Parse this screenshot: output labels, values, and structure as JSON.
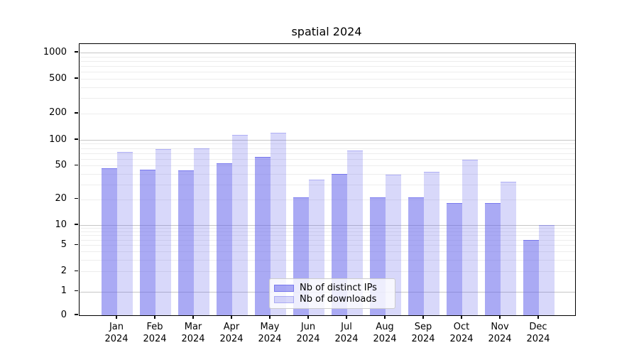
{
  "chart_data": {
    "type": "bar",
    "title": "spatial 2024",
    "categories": [
      "Jan",
      "Feb",
      "Mar",
      "Apr",
      "May",
      "Jun",
      "Jul",
      "Aug",
      "Sep",
      "Oct",
      "Nov",
      "Dec"
    ],
    "x_year_label": "2024",
    "series": [
      {
        "name": "Nb of distinct IPs",
        "values": [
          46,
          45,
          44,
          53,
          63,
          21,
          40,
          21,
          21,
          18,
          18,
          6
        ],
        "fill": "rgba(100,100,235,0.55)",
        "edge": "rgba(100,100,235,0.7)"
      },
      {
        "name": "Nb of downloads",
        "values": [
          72,
          78,
          80,
          114,
          120,
          34,
          75,
          39,
          42,
          58,
          32,
          10
        ],
        "fill": "rgba(100,100,235,0.25)",
        "edge": "rgba(100,100,235,0.35)"
      }
    ],
    "y_axis": {
      "scale": "symlog",
      "ticks": [
        0,
        1,
        2,
        5,
        10,
        20,
        50,
        100,
        200,
        500,
        1000
      ],
      "major_gridlines": [
        1,
        10,
        100,
        1000
      ],
      "range": [
        0,
        1200
      ],
      "grid": "on"
    },
    "legend": {
      "position": "lower center"
    },
    "colors": {
      "bar_base": "#6464eb",
      "major_grid": "#c6c6c6",
      "minor_grid": "#ededed",
      "axis": "#000000"
    }
  }
}
